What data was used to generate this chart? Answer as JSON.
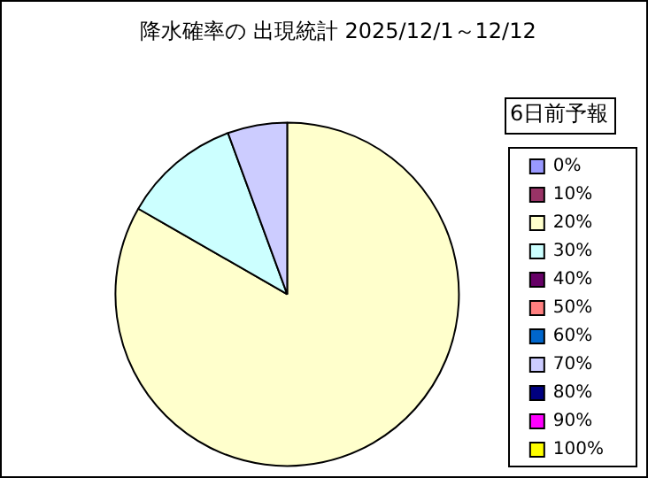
{
  "chart_data": {
    "type": "pie",
    "title": "降水確率の 出現統計 2025/12/1～12/12",
    "legend_title": "6日前予報",
    "legend": "right",
    "categories": [
      "0%",
      "10%",
      "20%",
      "30%",
      "40%",
      "50%",
      "60%",
      "70%",
      "80%",
      "90%",
      "100%"
    ],
    "values": [
      0,
      0,
      83.3,
      11.1,
      0,
      0,
      0,
      5.6,
      0,
      0,
      0
    ],
    "colors": [
      "#9999ff",
      "#993366",
      "#ffffcc",
      "#ccffff",
      "#660066",
      "#ff8080",
      "#0066cc",
      "#ccccff",
      "#000080",
      "#ff00ff",
      "#ffff00"
    ]
  }
}
